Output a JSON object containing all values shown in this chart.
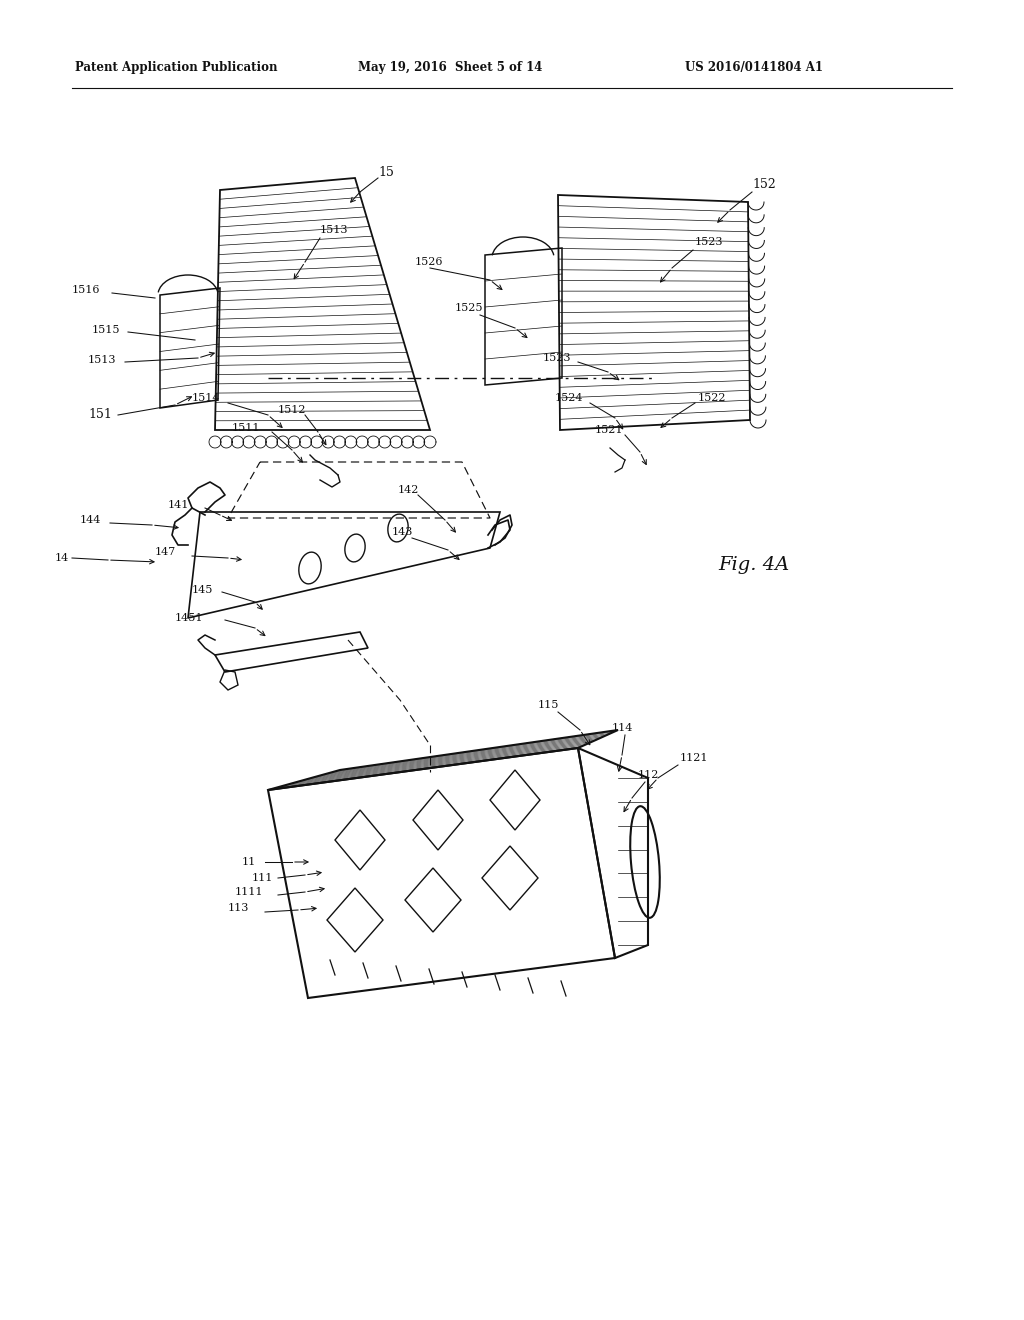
{
  "bg_color": "#ffffff",
  "line_color": "#111111",
  "header_left": "Patent Application Publication",
  "header_mid": "May 19, 2016  Sheet 5 of 14",
  "header_right": "US 2016/0141804 A1",
  "fig_label": "Fig. 4A"
}
